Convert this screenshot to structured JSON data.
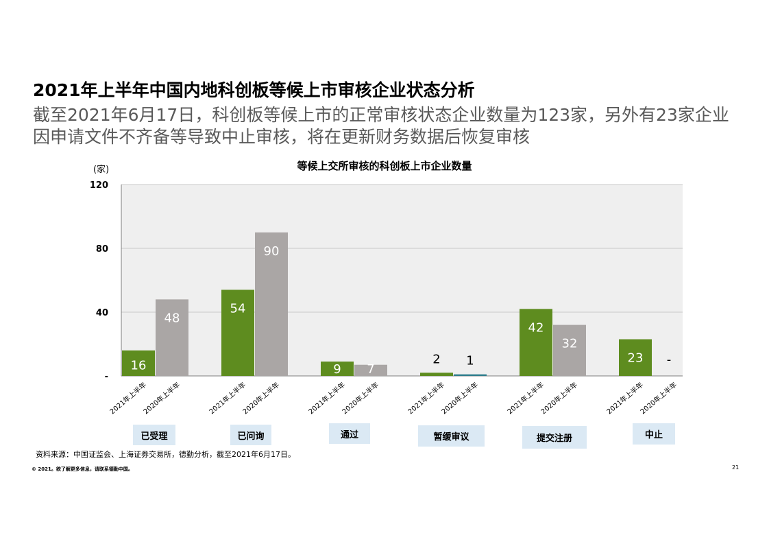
{
  "header": {
    "title": "2021年上半年中国内地科创板等候上市审核企业状态分析",
    "subtitle": "截至2021年6月17日，科创板等候上市的正常审核状态企业数量为123家，另外有23家企业因申请文件不齐备等导致中止审核，将在更新财务数据后恢复审核"
  },
  "chart_data": {
    "type": "bar",
    "title": "等候上交所审核的科创板上市企业数量",
    "ylabel": "(家)",
    "ylim": [
      0,
      120
    ],
    "yticks": [
      0,
      40,
      80,
      120
    ],
    "ytick_labels": [
      "-",
      "40",
      "80",
      "120"
    ],
    "grid": true,
    "categories": [
      "已受理",
      "已问询",
      "通过",
      "暂缓审议",
      "提交注册",
      "中止"
    ],
    "series": [
      {
        "name": "2021年上半年",
        "values": [
          16,
          54,
          9,
          2,
          42,
          23
        ],
        "labels": [
          "16",
          "54",
          "9",
          "2",
          "42",
          "23"
        ],
        "color": "#5e8c1f"
      },
      {
        "name": "2020年上半年",
        "values": [
          48,
          90,
          7,
          1,
          32,
          0
        ],
        "labels": [
          "48",
          "90",
          "7",
          "1",
          "32",
          "-"
        ],
        "color": "#aaa6a5"
      }
    ],
    "highlight_color": "#2e7d8c"
  },
  "footer": {
    "source": "资料来源：中国证监会、上海证券交易所，德勤分析，截至2021年6月17日。",
    "copyright": "© 2021。欲了解更多信息，请联系德勤中国。",
    "page_number": "21"
  }
}
